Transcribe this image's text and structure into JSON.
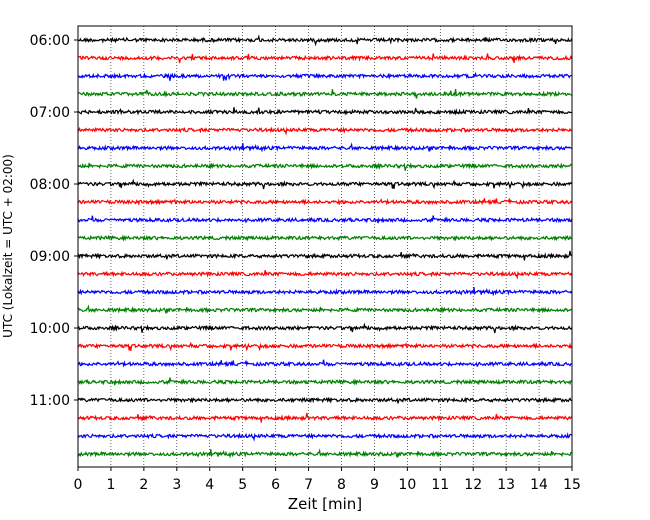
{
  "chart_data": {
    "type": "line",
    "title": "",
    "xlabel": "Zeit  [min]",
    "ylabel": "UTC (Lokalzeit = UTC + 02:00)",
    "xlim": [
      0,
      15
    ],
    "x_ticks": [
      0,
      1,
      2,
      3,
      4,
      5,
      6,
      7,
      8,
      9,
      10,
      11,
      12,
      13,
      14,
      15
    ],
    "y_tick_labels": [
      "06:00",
      "07:00",
      "08:00",
      "09:00",
      "10:00",
      "11:00"
    ],
    "trace_start": "06:00",
    "trace_interval_minutes": 15,
    "trace_count": 24,
    "trace_colors": [
      "#000000",
      "#ff0000",
      "#0000ff",
      "#008000"
    ],
    "grid": "vertical dotted lines at each minute",
    "legend": "none"
  }
}
